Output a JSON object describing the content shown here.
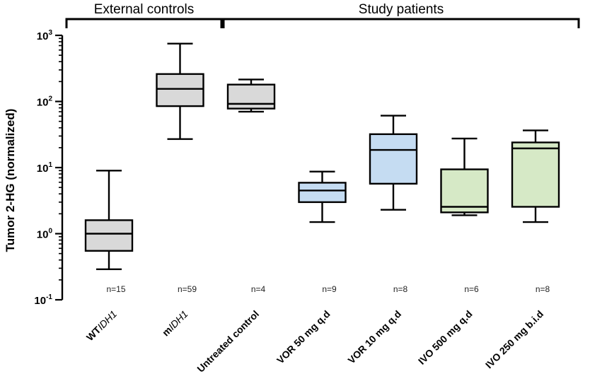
{
  "chart_data": {
    "type": "box",
    "ylabel": "Tumor 2-HG (normalized)",
    "yscale": "log",
    "ylim": [
      0.1,
      1000
    ],
    "yticks": [
      {
        "base": "10",
        "exp": "-1",
        "value": 0.1
      },
      {
        "base": "10",
        "exp": "0",
        "value": 1
      },
      {
        "base": "10",
        "exp": "1",
        "value": 10
      },
      {
        "base": "10",
        "exp": "2",
        "value": 100
      },
      {
        "base": "10",
        "exp": "3",
        "value": 1000
      }
    ],
    "groups": [
      {
        "label": "External controls",
        "span": [
          0,
          1
        ]
      },
      {
        "label": "Study patients",
        "span": [
          2,
          6
        ]
      }
    ],
    "colors": {
      "gray": "#d9d9d9",
      "blue": "#c5dcf2",
      "green": "#d6e9c6"
    },
    "categories": [
      {
        "label_plain": "WT",
        "label_italic": "IDH1",
        "n": "n=15",
        "color": "gray",
        "min": 0.29,
        "q1": 0.55,
        "median": 1.0,
        "q3": 1.6,
        "max": 9.0
      },
      {
        "label_plain": "m",
        "label_italic": "IDH1",
        "n": "n=59",
        "color": "gray",
        "min": 27,
        "q1": 85,
        "median": 155,
        "q3": 260,
        "max": 750
      },
      {
        "label_plain": "Untreated control",
        "label_italic": "",
        "n": "n=4",
        "color": "gray",
        "min": 70,
        "q1": 78,
        "median": 92,
        "q3": 180,
        "max": 215
      },
      {
        "label_plain": "VOR 50 mg q.d",
        "label_italic": "",
        "n": "n=9",
        "color": "blue",
        "min": 1.5,
        "q1": 3.0,
        "median": 4.5,
        "q3": 5.9,
        "max": 8.7
      },
      {
        "label_plain": "VOR 10 mg q.d",
        "label_italic": "",
        "n": "n=8",
        "color": "blue",
        "min": 2.3,
        "q1": 5.7,
        "median": 18.5,
        "q3": 32,
        "max": 61
      },
      {
        "label_plain": "IVO 500 mg q.d",
        "label_italic": "",
        "n": "n=6",
        "color": "green",
        "min": 1.9,
        "q1": 2.1,
        "median": 2.55,
        "q3": 9.4,
        "max": 27.5
      },
      {
        "label_plain": "IVO 250 mg b.i.d",
        "label_italic": "",
        "n": "n=8",
        "color": "green",
        "min": 1.5,
        "q1": 2.55,
        "median": 19.5,
        "q3": 24,
        "max": 36.5
      }
    ]
  }
}
